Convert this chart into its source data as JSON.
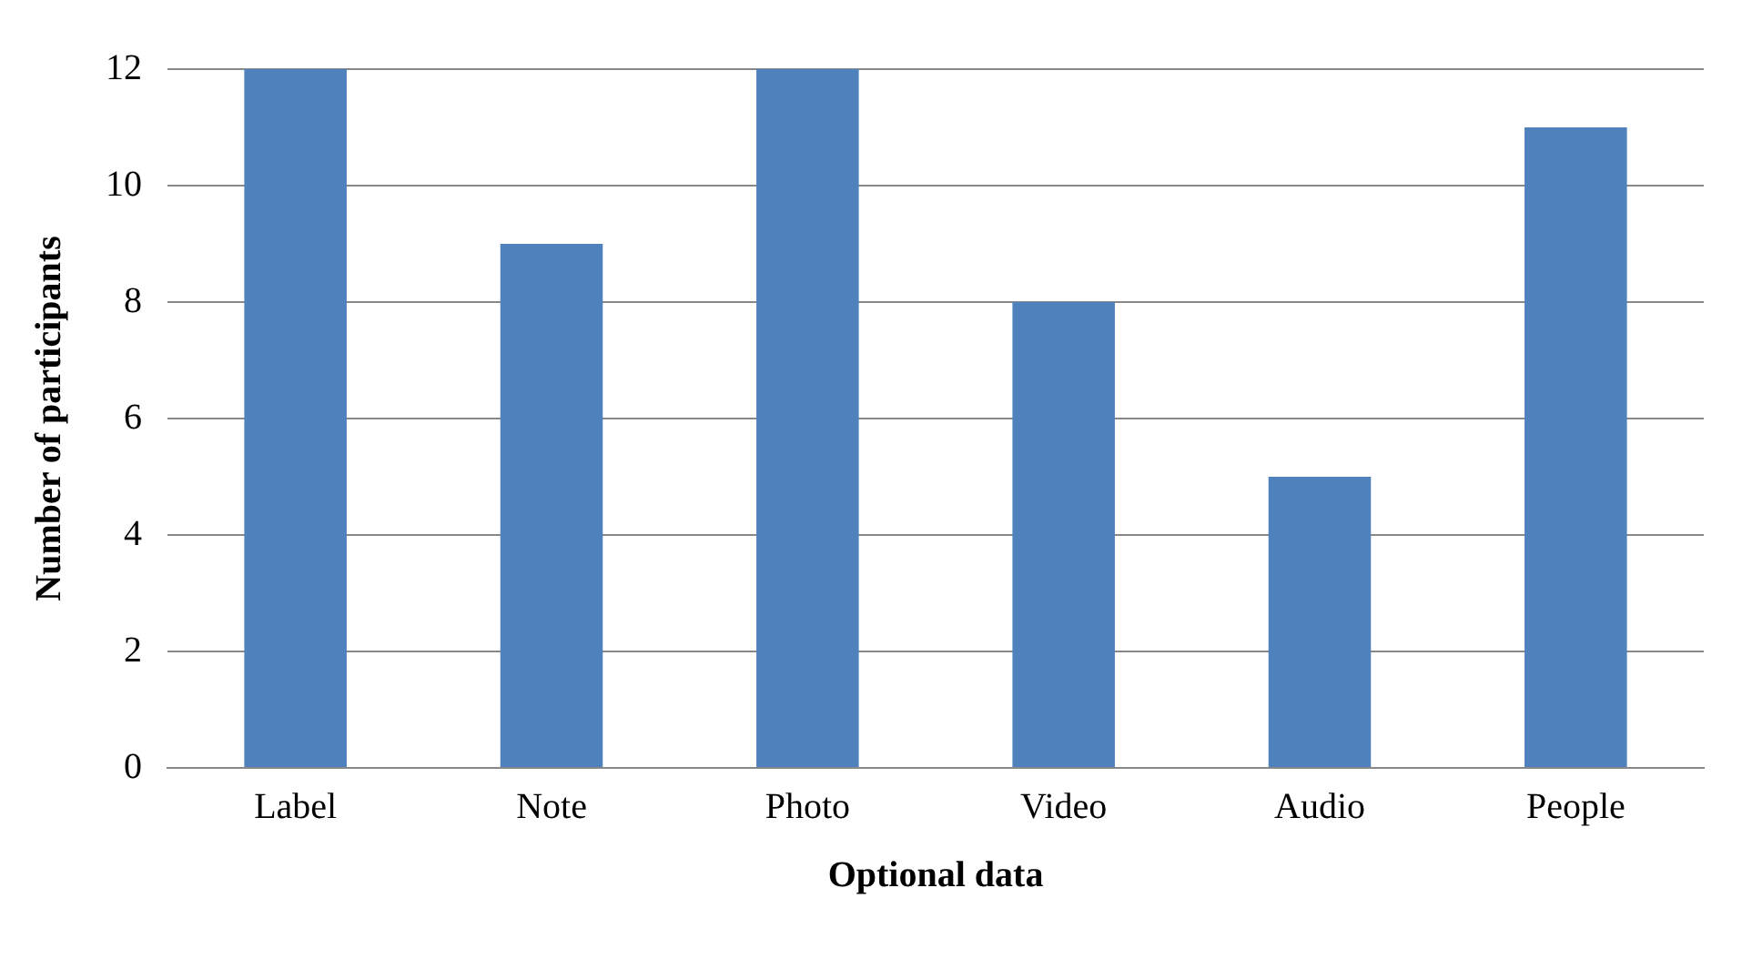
{
  "chart_data": {
    "type": "bar",
    "xlabel": "Optional data",
    "ylabel": "Number of participants",
    "categories": [
      "Label",
      "Note",
      "Photo",
      "Video",
      "Audio",
      "People"
    ],
    "values": [
      12,
      9,
      12,
      8,
      5,
      11
    ],
    "color": "#4f81bd",
    "ylim": [
      0,
      12
    ],
    "yticks": [
      0,
      2,
      4,
      6,
      8,
      10,
      12
    ],
    "grid": "y",
    "legend": false
  }
}
